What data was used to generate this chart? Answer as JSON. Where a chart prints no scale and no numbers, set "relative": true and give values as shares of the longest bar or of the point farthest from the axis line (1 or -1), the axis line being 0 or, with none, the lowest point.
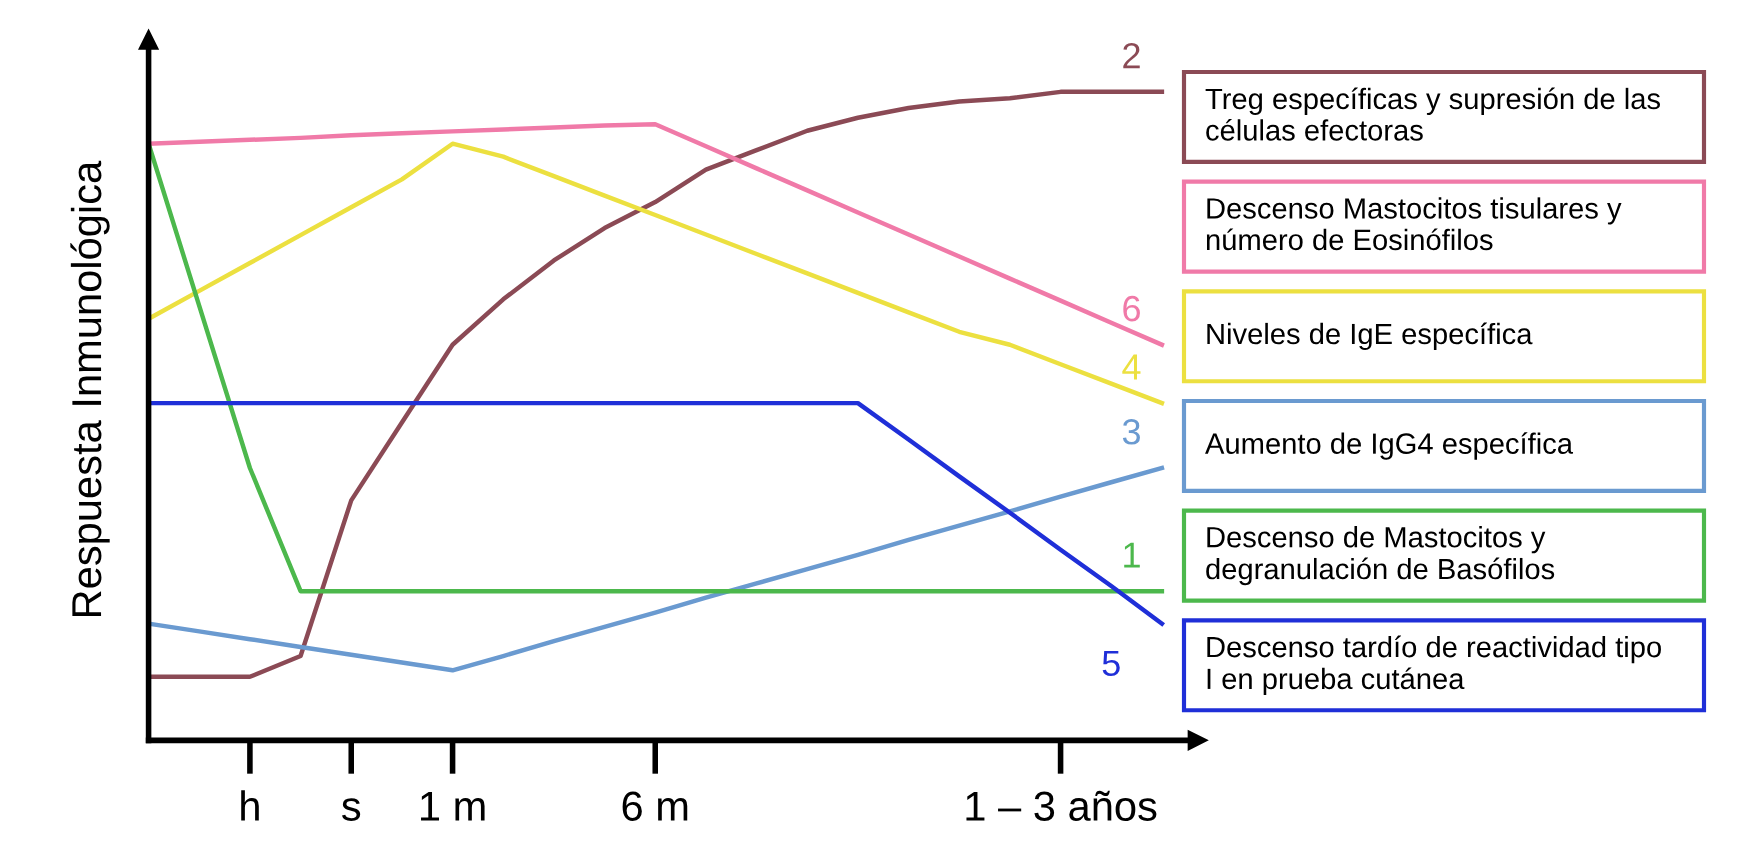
{
  "chart_data": {
    "type": "line",
    "relative": true,
    "ylabel": "Respuesta Inmunológica",
    "categories": [
      null,
      null,
      "h",
      null,
      "s",
      null,
      "1 m",
      null,
      null,
      null,
      "6 m",
      null,
      null,
      null,
      null,
      null,
      null,
      null,
      "1 – 3 años",
      null,
      null
    ],
    "legend": "right",
    "grid": false,
    "marker": "none",
    "line_style": "solid",
    "series": [
      {
        "name": "Treg específicas y supresión de las células efectoras",
        "color": "#8b4a55",
        "values": [
          0.098,
          0.098,
          0.098,
          0.13,
          0.37,
          0.49,
          0.61,
          0.68,
          0.74,
          0.79,
          0.83,
          0.88,
          0.91,
          0.94,
          0.96,
          0.975,
          0.985,
          0.99,
          1.0,
          1.0,
          1.0
        ]
      },
      {
        "name": "Descenso Mastocitos tisulares y número de Eosinófilos",
        "color": "#f07aa8",
        "values": [
          0.92,
          0.923,
          0.926,
          0.929,
          0.933,
          0.936,
          0.939,
          0.942,
          0.945,
          0.948,
          0.95,
          0.916,
          0.882,
          0.848,
          0.814,
          0.78,
          0.746,
          0.712,
          0.678,
          0.644,
          0.61
        ]
      },
      {
        "name": "Niveles de IgE específica",
        "color": "#ece040",
        "values": [
          0.65,
          0.693,
          0.736,
          0.779,
          0.822,
          0.865,
          0.92,
          0.9,
          0.87,
          0.84,
          0.81,
          0.78,
          0.75,
          0.72,
          0.69,
          0.66,
          0.63,
          0.61,
          0.58,
          0.55,
          0.52
        ]
      },
      {
        "name": "Aumento de IgG4 específica",
        "color": "#6a9ad0",
        "values": [
          0.18,
          0.168,
          0.156,
          0.144,
          0.132,
          0.12,
          0.108,
          0.13,
          0.153,
          0.175,
          0.197,
          0.22,
          0.242,
          0.264,
          0.286,
          0.309,
          0.331,
          0.353,
          0.376,
          0.398,
          0.42
        ]
      },
      {
        "name": "Descenso de Mastocitos y degranulación de Basófilos",
        "color": "#4cb84c",
        "values": [
          0.92,
          0.67,
          0.42,
          0.23,
          0.23,
          0.23,
          0.23,
          0.23,
          0.23,
          0.23,
          0.23,
          0.23,
          0.23,
          0.23,
          0.23,
          0.23,
          0.23,
          0.23,
          0.23,
          0.23,
          0.23
        ]
      },
      {
        "name": "Descenso tardío de reactividad tipo I en prueba cutánea",
        "color": "#1f2fd8",
        "values": [
          0.52,
          0.52,
          0.52,
          0.52,
          0.52,
          0.52,
          0.52,
          0.52,
          0.52,
          0.52,
          0.52,
          0.52,
          0.52,
          0.52,
          0.52,
          0.464,
          0.407,
          0.351,
          0.294,
          0.238,
          0.18
        ]
      }
    ],
    "annotations": [
      "2",
      "6",
      "4",
      "3",
      "1",
      "5"
    ]
  }
}
